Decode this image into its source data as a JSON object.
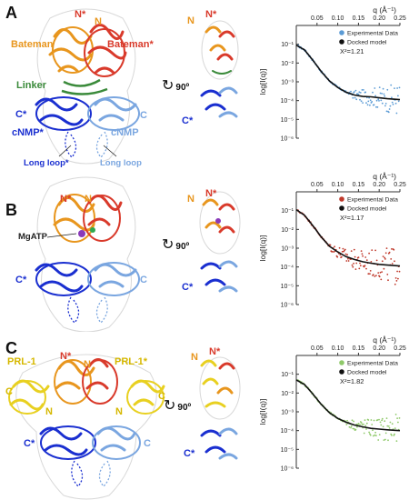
{
  "colors": {
    "bateman": "#e8961e",
    "bateman_star": "#d93a2b",
    "linker": "#3a8a3a",
    "cnmp_star": "#1a2fd0",
    "cnmp": "#7aa6e0",
    "prl": "#e8d020",
    "exp_a": "#5b9bd5",
    "exp_b": "#c0392b",
    "exp_c": "#8fc96a",
    "model": "#111111"
  },
  "panels": [
    {
      "letter": "A",
      "labels": {
        "n_star": "N*",
        "n": "N",
        "bateman": "Bateman",
        "bateman_star": "Bateman*",
        "linker": "Linker",
        "c_star": "C*",
        "c": "C",
        "cnmp_star": "cNMP*",
        "cnmp": "cNMP",
        "long_loop_star": "Long loop*",
        "long_loop": "Long loop",
        "side_n": "N",
        "side_n_star": "N*",
        "side_c_star": "C*"
      },
      "rotation": "90º"
    },
    {
      "letter": "B",
      "labels": {
        "n_star": "N*",
        "n": "N",
        "mgatp": "MgATP",
        "c_star": "C*",
        "c": "C",
        "side_n": "N",
        "side_n_star": "N*",
        "side_c_star": "C*"
      },
      "rotation": "90º"
    },
    {
      "letter": "C",
      "labels": {
        "n_star": "N*",
        "n": "N",
        "prl1": "PRL-1",
        "prl1_star": "PRL-1*",
        "c_left": "C",
        "n_left": "N",
        "c_right": "C",
        "n_right": "N",
        "c_star": "C*",
        "c": "C",
        "side_n": "N",
        "side_n_star": "N*",
        "side_c_star": "C*"
      },
      "rotation": "90º"
    }
  ],
  "chart_data": [
    {
      "type": "scatter",
      "panel": "A",
      "xlabel": "q (Å⁻¹)",
      "ylabel": "log[I(q)]",
      "xticks": [
        "0.05",
        "0.10",
        "0.15",
        "0.20",
        "0.25"
      ],
      "yticks": [
        "10⁻¹",
        "10⁻²",
        "10⁻³",
        "10⁻⁴",
        "10⁻⁵",
        "10⁻⁶"
      ],
      "xlim": [
        0,
        0.25
      ],
      "ylim_log10": [
        -6,
        0
      ],
      "legend": [
        "Experimental Data",
        "Docked model"
      ],
      "chi2": "X²=1.21",
      "model_points": [
        [
          0.0,
          -1.05
        ],
        [
          0.02,
          -1.3
        ],
        [
          0.04,
          -1.85
        ],
        [
          0.06,
          -2.45
        ],
        [
          0.08,
          -2.95
        ],
        [
          0.1,
          -3.3
        ],
        [
          0.12,
          -3.55
        ],
        [
          0.14,
          -3.7
        ],
        [
          0.16,
          -3.78
        ],
        [
          0.18,
          -3.8
        ],
        [
          0.2,
          -3.85
        ],
        [
          0.22,
          -3.9
        ],
        [
          0.25,
          -3.95
        ]
      ],
      "noise_start": 0.13,
      "noise_amp": 0.9
    },
    {
      "type": "scatter",
      "panel": "B",
      "xlabel": "q (Å⁻¹)",
      "ylabel": "log[I(q)]",
      "xticks": [
        "0.05",
        "0.10",
        "0.15",
        "0.20",
        "0.25"
      ],
      "yticks": [
        "10⁻¹",
        "10⁻²",
        "10⁻³",
        "10⁻⁴",
        "10⁻⁵",
        "10⁻⁶"
      ],
      "xlim": [
        0,
        0.25
      ],
      "ylim_log10": [
        -6,
        0
      ],
      "legend": [
        "Experimental Data",
        "Docked model"
      ],
      "chi2": "X²=1.17",
      "model_points": [
        [
          0.0,
          -0.95
        ],
        [
          0.02,
          -1.25
        ],
        [
          0.04,
          -1.8
        ],
        [
          0.06,
          -2.4
        ],
        [
          0.08,
          -2.9
        ],
        [
          0.1,
          -3.2
        ],
        [
          0.12,
          -3.45
        ],
        [
          0.14,
          -3.6
        ],
        [
          0.16,
          -3.72
        ],
        [
          0.18,
          -3.8
        ],
        [
          0.2,
          -3.86
        ],
        [
          0.22,
          -3.9
        ],
        [
          0.25,
          -3.95
        ]
      ],
      "noise_start": 0.08,
      "noise_amp": 1.1
    },
    {
      "type": "scatter",
      "panel": "C",
      "xlabel": "q (Å⁻¹)",
      "ylabel": "log[I(q)]",
      "xticks": [
        "0.05",
        "0.10",
        "0.15",
        "0.20",
        "0.25"
      ],
      "yticks": [
        "10⁻¹",
        "10⁻²",
        "10⁻³",
        "10⁻⁴",
        "10⁻⁵",
        "10⁻⁶"
      ],
      "xlim": [
        0,
        0.25
      ],
      "ylim_log10": [
        -6,
        0
      ],
      "legend": [
        "Experimental Data",
        "Docked model"
      ],
      "chi2": "X²=1.82",
      "model_points": [
        [
          0.0,
          -1.3
        ],
        [
          0.02,
          -1.55
        ],
        [
          0.04,
          -2.05
        ],
        [
          0.06,
          -2.6
        ],
        [
          0.08,
          -3.05
        ],
        [
          0.1,
          -3.35
        ],
        [
          0.12,
          -3.55
        ],
        [
          0.14,
          -3.7
        ],
        [
          0.16,
          -3.8
        ],
        [
          0.18,
          -3.88
        ],
        [
          0.2,
          -3.92
        ],
        [
          0.22,
          -3.96
        ],
        [
          0.25,
          -4.0
        ]
      ],
      "noise_start": 0.12,
      "noise_amp": 0.9
    }
  ]
}
